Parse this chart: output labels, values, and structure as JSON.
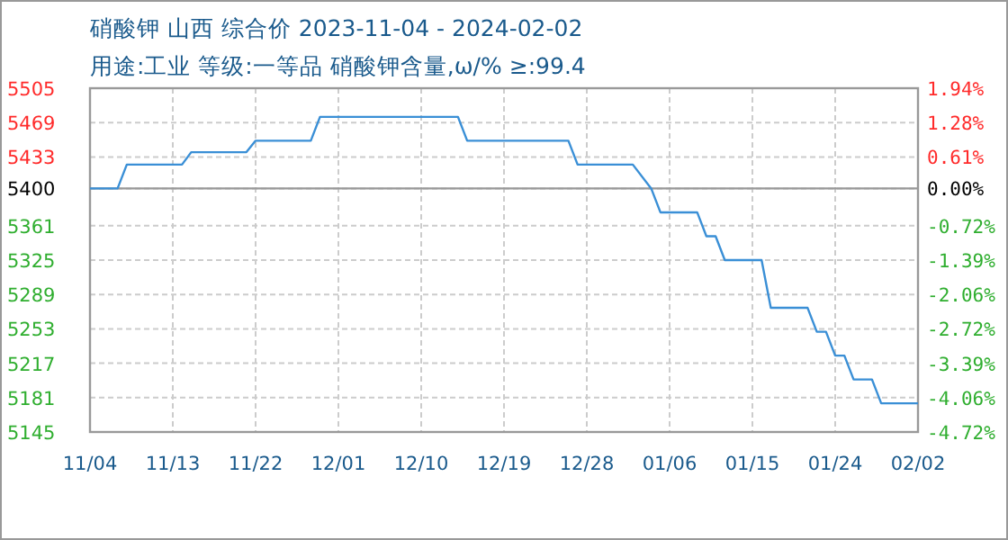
{
  "chart_data": {
    "type": "line",
    "title": "硝酸钾 山西 综合价 2023-11-04 - 2024-02-02",
    "subtitle": "用途:工业 等级:一等品 硝酸钾含量,ω/% ≥:99.4",
    "x": [
      "2023-11-04",
      "2023-11-07",
      "2023-11-08",
      "2023-11-14",
      "2023-11-15",
      "2023-11-21",
      "2023-11-22",
      "2023-11-28",
      "2023-11-29",
      "2023-12-14",
      "2023-12-15",
      "2023-12-26",
      "2023-12-27",
      "2024-01-02",
      "2024-01-04",
      "2024-01-05",
      "2024-01-09",
      "2024-01-10",
      "2024-01-11",
      "2024-01-12",
      "2024-01-16",
      "2024-01-17",
      "2024-01-21",
      "2024-01-22",
      "2024-01-23",
      "2024-01-24",
      "2024-01-25",
      "2024-01-26",
      "2024-01-28",
      "2024-01-29",
      "2024-02-02"
    ],
    "series": [
      {
        "color": "#3a8fd6",
        "values": [
          5400,
          5400,
          5425,
          5425,
          5438,
          5438,
          5450,
          5450,
          5475,
          5475,
          5450,
          5450,
          5425,
          5425,
          5400,
          5375,
          5375,
          5350,
          5350,
          5325,
          5325,
          5275,
          5275,
          5250,
          5250,
          5225,
          5225,
          5200,
          5200,
          5175,
          5175
        ]
      }
    ],
    "xlim": [
      "2023-11-04",
      "2024-02-02"
    ],
    "xticks": [
      {
        "value": "2023-11-04",
        "label": "11/04"
      },
      {
        "value": "2023-11-13",
        "label": "11/13"
      },
      {
        "value": "2023-11-22",
        "label": "11/22"
      },
      {
        "value": "2023-12-01",
        "label": "12/01"
      },
      {
        "value": "2023-12-10",
        "label": "12/10"
      },
      {
        "value": "2023-12-19",
        "label": "12/19"
      },
      {
        "value": "2023-12-28",
        "label": "12/28"
      },
      {
        "value": "2024-01-06",
        "label": "01/06"
      },
      {
        "value": "2024-01-15",
        "label": "01/15"
      },
      {
        "value": "2024-01-24",
        "label": "01/24"
      },
      {
        "value": "2024-02-02",
        "label": "02/02"
      }
    ],
    "ylim": [
      5145,
      5505
    ],
    "yticks": [
      5505,
      5469,
      5433,
      5400,
      5361,
      5325,
      5289,
      5253,
      5217,
      5181,
      5145
    ],
    "y2lim": [
      -4.72,
      1.94
    ],
    "y2ticks": [
      {
        "value": 1.94,
        "label": "1.94%"
      },
      {
        "value": 1.28,
        "label": "1.28%"
      },
      {
        "value": 0.61,
        "label": "0.61%"
      },
      {
        "value": 0,
        "label": "0.00%"
      },
      {
        "value": -0.72,
        "label": "-0.72%"
      },
      {
        "value": -1.39,
        "label": "-1.39%"
      },
      {
        "value": -2.06,
        "label": "-2.06%"
      },
      {
        "value": -2.72,
        "label": "-2.72%"
      },
      {
        "value": -3.39,
        "label": "-3.39%"
      },
      {
        "value": -4.06,
        "label": "-4.06%"
      },
      {
        "value": -4.72,
        "label": "-4.72%"
      }
    ],
    "ref_lines": [
      {
        "axis": "y",
        "value": 5400,
        "color": "#999999"
      }
    ],
    "grid": true
  }
}
